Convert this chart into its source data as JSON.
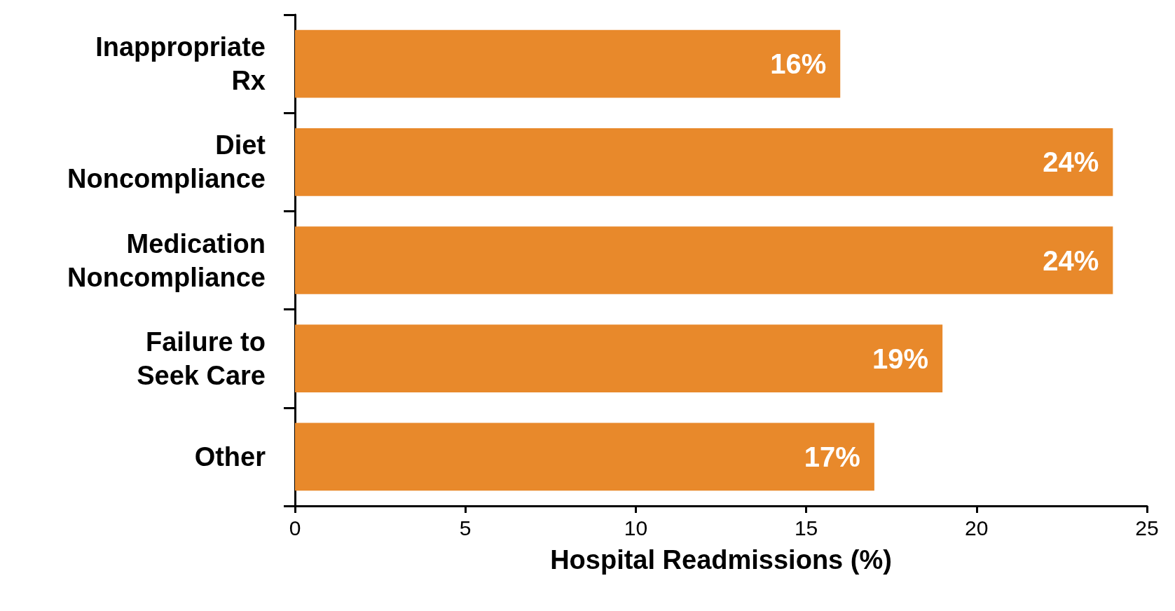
{
  "chart_data": {
    "type": "bar",
    "orientation": "horizontal",
    "xlabel": "Hospital Readmissions (%)",
    "categories": [
      "Inappropriate\nRx",
      "Diet\nNoncompliance",
      "Medication\nNoncompliance",
      "Failure to\nSeek Care",
      "Other"
    ],
    "values": [
      16,
      24,
      24,
      19,
      17
    ],
    "value_labels": [
      "16%",
      "24%",
      "24%",
      "19%",
      "17%"
    ],
    "color": "#e8892b",
    "xlim": [
      0,
      25
    ],
    "xticks": [
      0,
      5,
      10,
      15,
      20,
      25
    ],
    "grid": false
  }
}
